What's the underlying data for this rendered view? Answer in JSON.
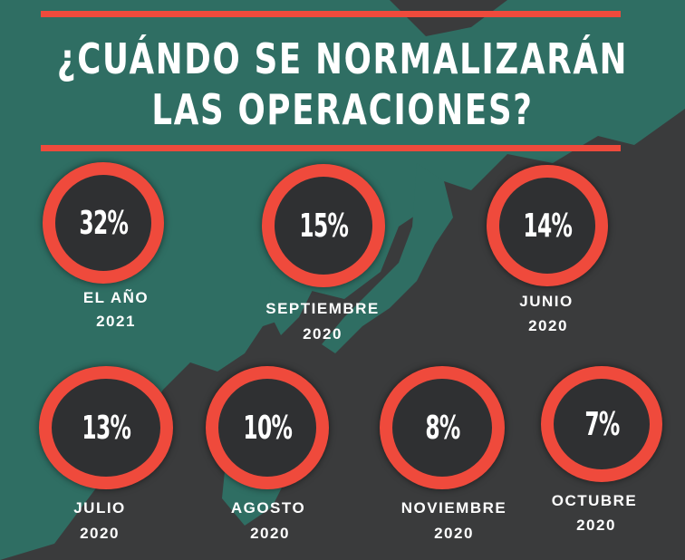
{
  "title": {
    "line1": "¿CUÁNDO SE NORMALIZARÁN",
    "line2": "LAS OPERACIONES?"
  },
  "colors": {
    "accent": "#ef4a3c",
    "background": "#3a3b3c",
    "map_land": "#2f6e63"
  },
  "stats": [
    {
      "percent": "32%",
      "label_line1": "EL AÑO",
      "label_line2": "2021"
    },
    {
      "percent": "15%",
      "label_line1": "SEPTIEMBRE",
      "label_line2": "2020"
    },
    {
      "percent": "14%",
      "label_line1": "JUNIO",
      "label_line2": "2020"
    },
    {
      "percent": "13%",
      "label_line1": "JULIO",
      "label_line2": "2020"
    },
    {
      "percent": "10%",
      "label_line1": "AGOSTO",
      "label_line2": "2020"
    },
    {
      "percent": "8%",
      "label_line1": "NOVIEMBRE",
      "label_line2": "2020"
    },
    {
      "percent": "7%",
      "label_line1": "OCTUBRE",
      "label_line2": "2020"
    }
  ]
}
